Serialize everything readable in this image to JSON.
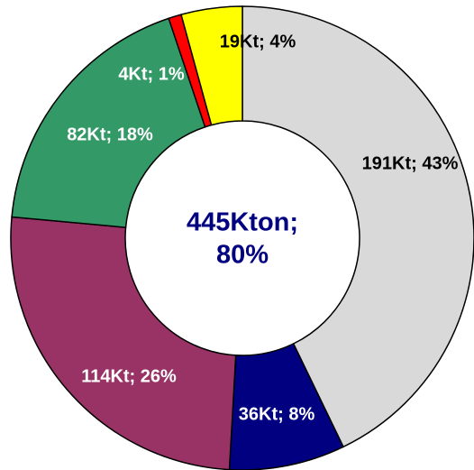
{
  "chart_data": {
    "type": "donut",
    "categories": [
      "191Kt; 43%",
      "36Kt; 8%",
      "114Kt; 26%",
      "82Kt; 18%",
      "4Kt; 1%",
      "19Kt; 4%"
    ],
    "values": [
      191,
      36,
      114,
      82,
      4,
      19
    ],
    "value_labels": [
      "191Kt; 43%",
      "36Kt; 8%",
      "114Kt; 26%",
      "82Kt; 18%",
      "4Kt; 1%",
      "19Kt; 4%"
    ],
    "colors": [
      "#d9d9d9",
      "#000080",
      "#993366",
      "#339966",
      "#ff0000",
      "#ffff00"
    ],
    "center_text": [
      "445Kton;",
      "80%"
    ]
  }
}
